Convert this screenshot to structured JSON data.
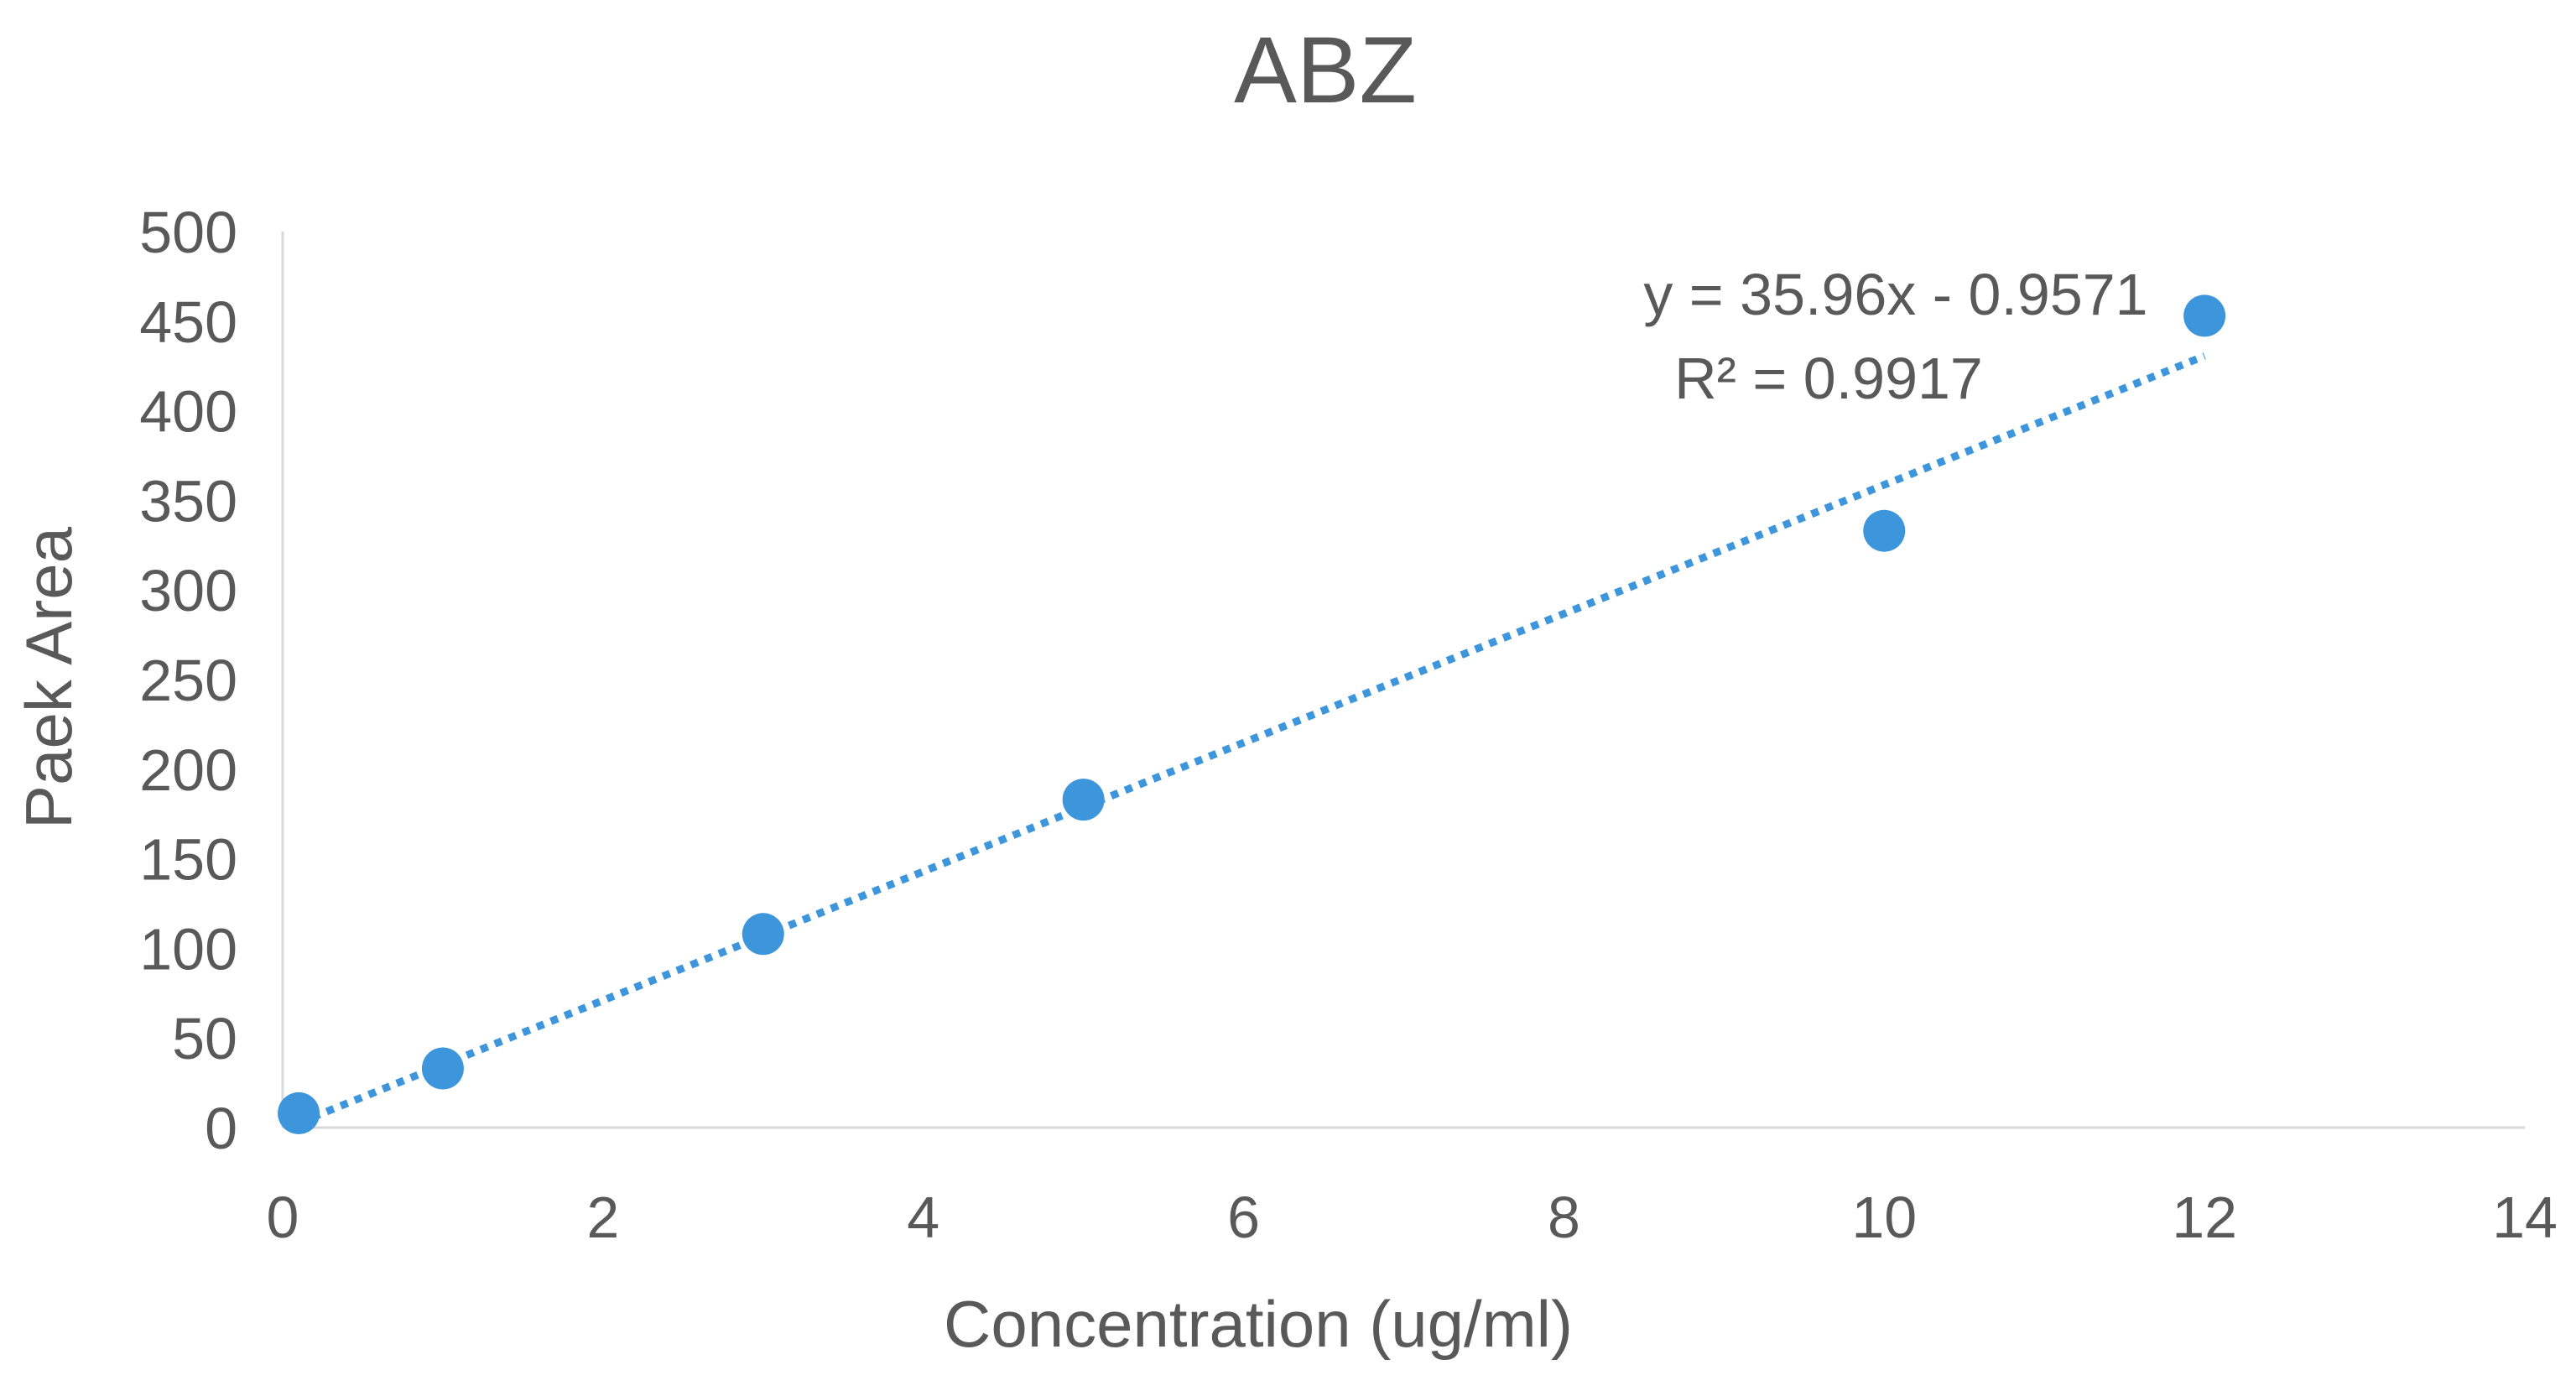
{
  "chart_data": {
    "type": "scatter",
    "title": "ABZ",
    "xlabel": "Concentration (ug/ml)",
    "ylabel": "Paek Area",
    "xlim": [
      0,
      14
    ],
    "ylim": [
      0,
      500
    ],
    "x_ticks": [
      0,
      2,
      4,
      6,
      8,
      10,
      12,
      14
    ],
    "y_ticks": [
      0,
      50,
      100,
      150,
      200,
      250,
      300,
      350,
      400,
      450,
      500
    ],
    "grid": false,
    "legend": "none",
    "series": [
      {
        "name": "ABZ",
        "color": "#3D96DB",
        "x": [
          0.1,
          1,
          3,
          5,
          10,
          12
        ],
        "y": [
          8,
          33,
          108,
          183,
          333,
          453
        ]
      }
    ],
    "trendline": {
      "type": "linear",
      "style": "dotted",
      "color": "#3D96DB",
      "slope": 35.96,
      "intercept": -0.9571,
      "x_range": [
        0.1,
        12
      ],
      "equation": "y = 35.96x - 0.9571",
      "r_squared_label": "R² = 0.9917"
    }
  }
}
